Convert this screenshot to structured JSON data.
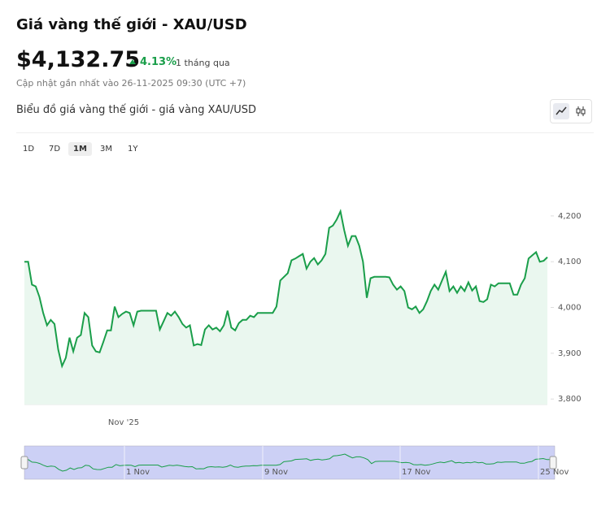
{
  "header": {
    "title": "Giá vàng thế giới - XAU/USD",
    "price": "$4,132.75",
    "change": "4.13%",
    "period": "1 tháng qua",
    "updated": "Cập nhật gần nhất vào 26-11-2025 09:30 (UTC +7)",
    "subtitle": "Biểu đồ giá vàng thế giới - giá vàng XAU/USD"
  },
  "ranges": [
    "1D",
    "7D",
    "1M",
    "3M",
    "1Y"
  ],
  "active_range": "1M",
  "chart_data": {
    "type": "area",
    "color": "#1a9e4a",
    "x_label": "Nov '25",
    "values": [
      4100,
      4100,
      4050,
      4046,
      4023,
      3988,
      3961,
      3973,
      3964,
      3908,
      3872,
      3890,
      3934,
      3904,
      3934,
      3940,
      3988,
      3979,
      3917,
      3904,
      3902,
      3925,
      3950,
      3950,
      4002,
      3979,
      3986,
      3991,
      3988,
      3961,
      3991,
      3993,
      3993,
      3993,
      3993,
      3993,
      3952,
      3970,
      3988,
      3982,
      3991,
      3979,
      3964,
      3956,
      3961,
      3917,
      3920,
      3918,
      3952,
      3961,
      3952,
      3956,
      3948,
      3961,
      3993,
      3956,
      3950,
      3966,
      3973,
      3973,
      3982,
      3979,
      3988,
      3988,
      3988,
      3988,
      3988,
      4002,
      4059,
      4067,
      4075,
      4103,
      4107,
      4112,
      4117,
      4085,
      4100,
      4108,
      4094,
      4103,
      4117,
      4174,
      4179,
      4192,
      4210,
      4169,
      4135,
      4156,
      4156,
      4135,
      4100,
      4021,
      4064,
      4067,
      4067,
      4067,
      4067,
      4066,
      4050,
      4039,
      4046,
      4036,
      4000,
      3996,
      4002,
      3988,
      3996,
      4014,
      4036,
      4050,
      4039,
      4059,
      4078,
      4036,
      4046,
      4032,
      4046,
      4036,
      4055,
      4037,
      4046,
      4014,
      4012,
      4018,
      4050,
      4046,
      4053,
      4053,
      4053,
      4053,
      4028,
      4028,
      4050,
      4064,
      4107,
      4114,
      4121,
      4100,
      4102,
      4110
    ],
    "ylim": [
      3788,
      4308
    ],
    "yticks": [
      {
        "value": 3800,
        "label": "3,800"
      },
      {
        "value": 3900,
        "label": "3,900"
      },
      {
        "value": 4000,
        "label": "4,000"
      },
      {
        "value": 4100,
        "label": "4,100"
      },
      {
        "value": 4200,
        "label": "4,200"
      }
    ],
    "navigator_labels": [
      "1 Nov",
      "9 Nov",
      "17 Nov",
      "25 Nov"
    ]
  }
}
